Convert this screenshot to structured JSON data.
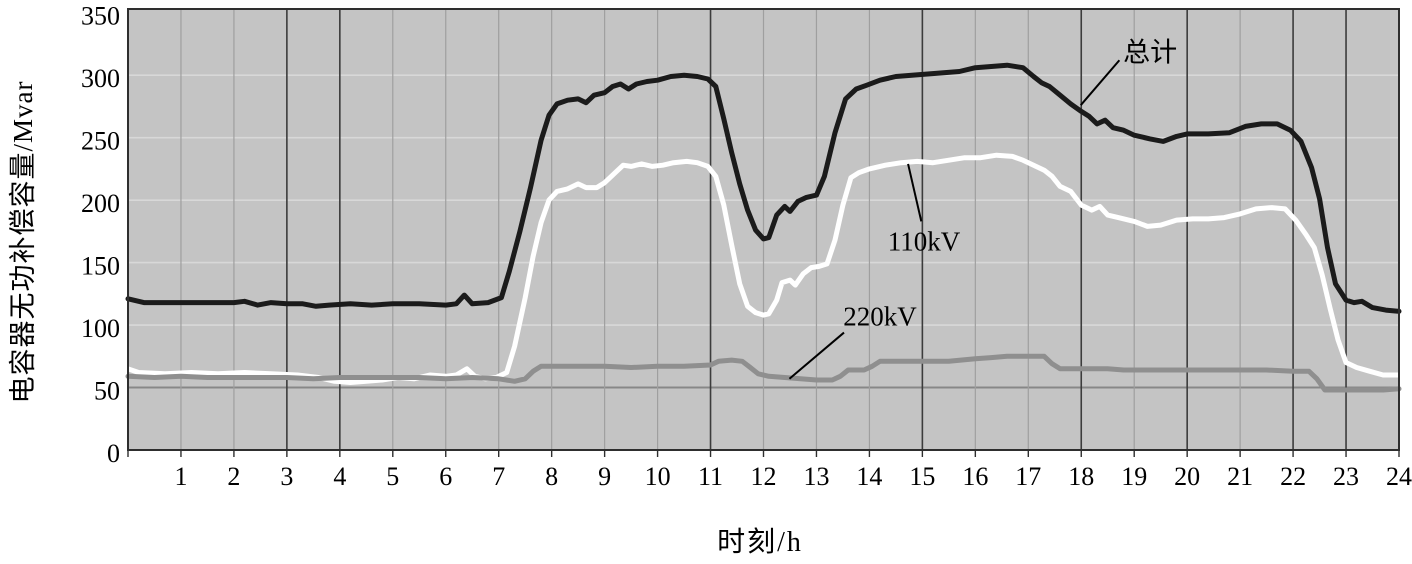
{
  "chart_data": {
    "type": "line",
    "title": "",
    "xlabel": "时刻/h",
    "ylabel": "电容器无功补偿容量/Mvar",
    "xlim": [
      0,
      24
    ],
    "ylim": [
      0,
      350
    ],
    "x_ticks": [
      0,
      1,
      2,
      3,
      4,
      5,
      6,
      7,
      8,
      9,
      10,
      11,
      12,
      13,
      14,
      15,
      16,
      17,
      18,
      19,
      20,
      21,
      22,
      23,
      24
    ],
    "y_ticks": [
      0,
      50,
      100,
      150,
      200,
      250,
      300,
      350
    ],
    "grid": {
      "vertical_hours": [
        1,
        2,
        3,
        4,
        5,
        6,
        7,
        8,
        9,
        10,
        11,
        12,
        13,
        14,
        15,
        16,
        17,
        18,
        19,
        20,
        21,
        22,
        23
      ],
      "dark_vertical_hours": [
        3,
        4,
        11,
        15,
        18,
        20,
        22,
        23
      ],
      "horizontal_values": [
        50,
        100,
        150,
        200,
        250,
        300
      ],
      "dark_horizontal_values": [
        50
      ]
    },
    "colors": {
      "plot_bg": "#c4c4c4",
      "grid_light_h": "#d8d8d8",
      "grid_dark_h": "#878787",
      "grid_light_v": "#9f9f9f",
      "grid_dark_v": "#3c3c3c",
      "frame": "#2e2e2e",
      "annotation": "#000000"
    },
    "series": [
      {
        "key": "total",
        "name": "总计",
        "color": "#1b1b1b",
        "width": 5,
        "points": [
          [
            0,
            121
          ],
          [
            0.3,
            118
          ],
          [
            1,
            118
          ],
          [
            1.5,
            118
          ],
          [
            2,
            118
          ],
          [
            2.2,
            119
          ],
          [
            2.45,
            116
          ],
          [
            2.7,
            118
          ],
          [
            3,
            117
          ],
          [
            3.3,
            117
          ],
          [
            3.55,
            115
          ],
          [
            3.8,
            116
          ],
          [
            4.2,
            117
          ],
          [
            4.6,
            116
          ],
          [
            5,
            117
          ],
          [
            5.5,
            117
          ],
          [
            6,
            116
          ],
          [
            6.2,
            117
          ],
          [
            6.35,
            124
          ],
          [
            6.5,
            117
          ],
          [
            6.8,
            118
          ],
          [
            7.05,
            122
          ],
          [
            7.2,
            143
          ],
          [
            7.4,
            175
          ],
          [
            7.6,
            210
          ],
          [
            7.8,
            248
          ],
          [
            7.95,
            268
          ],
          [
            8.1,
            277
          ],
          [
            8.3,
            280
          ],
          [
            8.5,
            281
          ],
          [
            8.65,
            278
          ],
          [
            8.8,
            284
          ],
          [
            9,
            286
          ],
          [
            9.15,
            291
          ],
          [
            9.3,
            293
          ],
          [
            9.45,
            289
          ],
          [
            9.6,
            293
          ],
          [
            9.8,
            295
          ],
          [
            10,
            296
          ],
          [
            10.25,
            299
          ],
          [
            10.5,
            300
          ],
          [
            10.75,
            299
          ],
          [
            10.95,
            297
          ],
          [
            11.1,
            291
          ],
          [
            11.25,
            265
          ],
          [
            11.4,
            238
          ],
          [
            11.55,
            213
          ],
          [
            11.7,
            192
          ],
          [
            11.85,
            176
          ],
          [
            12,
            169
          ],
          [
            12.1,
            170
          ],
          [
            12.25,
            188
          ],
          [
            12.4,
            195
          ],
          [
            12.5,
            191
          ],
          [
            12.65,
            199
          ],
          [
            12.8,
            202
          ],
          [
            13,
            204
          ],
          [
            13.15,
            219
          ],
          [
            13.35,
            254
          ],
          [
            13.55,
            281
          ],
          [
            13.75,
            289
          ],
          [
            13.95,
            292
          ],
          [
            14.2,
            296
          ],
          [
            14.5,
            299
          ],
          [
            14.8,
            300
          ],
          [
            15.1,
            301
          ],
          [
            15.4,
            302
          ],
          [
            15.7,
            303
          ],
          [
            16,
            306
          ],
          [
            16.3,
            307
          ],
          [
            16.6,
            308
          ],
          [
            16.9,
            306
          ],
          [
            17.1,
            299
          ],
          [
            17.25,
            294
          ],
          [
            17.4,
            291
          ],
          [
            17.6,
            284
          ],
          [
            17.8,
            277
          ],
          [
            18,
            271
          ],
          [
            18.15,
            267
          ],
          [
            18.3,
            261
          ],
          [
            18.45,
            264
          ],
          [
            18.6,
            258
          ],
          [
            18.8,
            256
          ],
          [
            19,
            252
          ],
          [
            19.3,
            249
          ],
          [
            19.55,
            247
          ],
          [
            19.8,
            251
          ],
          [
            20,
            253
          ],
          [
            20.4,
            253
          ],
          [
            20.8,
            254
          ],
          [
            21.1,
            259
          ],
          [
            21.4,
            261
          ],
          [
            21.7,
            261
          ],
          [
            21.95,
            256
          ],
          [
            22.15,
            247
          ],
          [
            22.35,
            226
          ],
          [
            22.5,
            201
          ],
          [
            22.65,
            162
          ],
          [
            22.8,
            133
          ],
          [
            23,
            120
          ],
          [
            23.15,
            118
          ],
          [
            23.3,
            119
          ],
          [
            23.5,
            114
          ],
          [
            23.75,
            112
          ],
          [
            24,
            111
          ]
        ]
      },
      {
        "key": "kv110",
        "name": "110kV",
        "color": "#ffffff",
        "width": 5,
        "points": [
          [
            0,
            65
          ],
          [
            0.2,
            62
          ],
          [
            0.7,
            61
          ],
          [
            1.2,
            62
          ],
          [
            1.7,
            61
          ],
          [
            2.2,
            62
          ],
          [
            2.7,
            61
          ],
          [
            3.2,
            60
          ],
          [
            3.6,
            58
          ],
          [
            3.9,
            55
          ],
          [
            4.2,
            54
          ],
          [
            4.5,
            55
          ],
          [
            4.8,
            56
          ],
          [
            5.1,
            58
          ],
          [
            5.4,
            57
          ],
          [
            5.7,
            60
          ],
          [
            6,
            59
          ],
          [
            6.2,
            60
          ],
          [
            6.4,
            65
          ],
          [
            6.55,
            59
          ],
          [
            6.75,
            57
          ],
          [
            6.95,
            58
          ],
          [
            7.15,
            62
          ],
          [
            7.3,
            83
          ],
          [
            7.5,
            122
          ],
          [
            7.65,
            155
          ],
          [
            7.8,
            182
          ],
          [
            7.95,
            200
          ],
          [
            8.1,
            207
          ],
          [
            8.3,
            209
          ],
          [
            8.5,
            213
          ],
          [
            8.65,
            210
          ],
          [
            8.85,
            210
          ],
          [
            9,
            214
          ],
          [
            9.2,
            222
          ],
          [
            9.35,
            228
          ],
          [
            9.5,
            227
          ],
          [
            9.7,
            229
          ],
          [
            9.9,
            227
          ],
          [
            10.1,
            228
          ],
          [
            10.3,
            230
          ],
          [
            10.55,
            231
          ],
          [
            10.75,
            230
          ],
          [
            10.95,
            227
          ],
          [
            11.1,
            219
          ],
          [
            11.25,
            196
          ],
          [
            11.4,
            164
          ],
          [
            11.55,
            133
          ],
          [
            11.7,
            115
          ],
          [
            11.85,
            110
          ],
          [
            12,
            108
          ],
          [
            12.1,
            109
          ],
          [
            12.25,
            120
          ],
          [
            12.35,
            134
          ],
          [
            12.5,
            136
          ],
          [
            12.6,
            132
          ],
          [
            12.75,
            141
          ],
          [
            12.9,
            146
          ],
          [
            13.05,
            147
          ],
          [
            13.2,
            149
          ],
          [
            13.35,
            168
          ],
          [
            13.5,
            196
          ],
          [
            13.65,
            218
          ],
          [
            13.8,
            222
          ],
          [
            14,
            225
          ],
          [
            14.3,
            228
          ],
          [
            14.6,
            230
          ],
          [
            14.9,
            231
          ],
          [
            15.2,
            230
          ],
          [
            15.5,
            232
          ],
          [
            15.8,
            234
          ],
          [
            16.1,
            234
          ],
          [
            16.4,
            236
          ],
          [
            16.7,
            235
          ],
          [
            16.9,
            232
          ],
          [
            17.1,
            228
          ],
          [
            17.3,
            224
          ],
          [
            17.45,
            219
          ],
          [
            17.6,
            211
          ],
          [
            17.8,
            207
          ],
          [
            18,
            196
          ],
          [
            18.2,
            192
          ],
          [
            18.35,
            195
          ],
          [
            18.5,
            188
          ],
          [
            18.7,
            186
          ],
          [
            19,
            183
          ],
          [
            19.25,
            179
          ],
          [
            19.5,
            180
          ],
          [
            19.8,
            184
          ],
          [
            20.1,
            185
          ],
          [
            20.4,
            185
          ],
          [
            20.7,
            186
          ],
          [
            21,
            189
          ],
          [
            21.3,
            193
          ],
          [
            21.6,
            194
          ],
          [
            21.85,
            193
          ],
          [
            22.05,
            184
          ],
          [
            22.25,
            172
          ],
          [
            22.4,
            162
          ],
          [
            22.55,
            140
          ],
          [
            22.7,
            113
          ],
          [
            22.85,
            88
          ],
          [
            23,
            70
          ],
          [
            23.2,
            66
          ],
          [
            23.45,
            63
          ],
          [
            23.7,
            60
          ],
          [
            24,
            60
          ]
        ]
      },
      {
        "key": "kv220",
        "name": "220kV",
        "color": "#8f8f8f",
        "width": 5,
        "points": [
          [
            0,
            59
          ],
          [
            0.5,
            58
          ],
          [
            1,
            59
          ],
          [
            1.5,
            58
          ],
          [
            2,
            58
          ],
          [
            2.5,
            58
          ],
          [
            3,
            58
          ],
          [
            3.5,
            57
          ],
          [
            4,
            58
          ],
          [
            4.5,
            58
          ],
          [
            5,
            58
          ],
          [
            5.5,
            58
          ],
          [
            6,
            57
          ],
          [
            6.5,
            58
          ],
          [
            7,
            57
          ],
          [
            7.3,
            55
          ],
          [
            7.5,
            57
          ],
          [
            7.65,
            63
          ],
          [
            7.8,
            67
          ],
          [
            8,
            67
          ],
          [
            8.5,
            67
          ],
          [
            9,
            67
          ],
          [
            9.5,
            66
          ],
          [
            10,
            67
          ],
          [
            10.5,
            67
          ],
          [
            11,
            68
          ],
          [
            11.15,
            71
          ],
          [
            11.4,
            72
          ],
          [
            11.6,
            71
          ],
          [
            11.75,
            66
          ],
          [
            11.9,
            61
          ],
          [
            12.1,
            59
          ],
          [
            12.4,
            58
          ],
          [
            12.7,
            57
          ],
          [
            13,
            56
          ],
          [
            13.3,
            56
          ],
          [
            13.45,
            59
          ],
          [
            13.6,
            64
          ],
          [
            13.9,
            64
          ],
          [
            14.05,
            67
          ],
          [
            14.2,
            71
          ],
          [
            14.5,
            71
          ],
          [
            15,
            71
          ],
          [
            15.5,
            71
          ],
          [
            16,
            73
          ],
          [
            16.3,
            74
          ],
          [
            16.6,
            75
          ],
          [
            17,
            75
          ],
          [
            17.3,
            75
          ],
          [
            17.45,
            69
          ],
          [
            17.6,
            65
          ],
          [
            18,
            65
          ],
          [
            18.5,
            65
          ],
          [
            18.8,
            64
          ],
          [
            19.2,
            64
          ],
          [
            19.6,
            64
          ],
          [
            20,
            64
          ],
          [
            20.5,
            64
          ],
          [
            21,
            64
          ],
          [
            21.5,
            64
          ],
          [
            22,
            63
          ],
          [
            22.3,
            63
          ],
          [
            22.45,
            57
          ],
          [
            22.6,
            48
          ],
          [
            22.9,
            48
          ],
          [
            23.3,
            48
          ],
          [
            23.7,
            48
          ],
          [
            24,
            49
          ]
        ]
      }
    ],
    "annotations": [
      {
        "key": "total",
        "text": "总计",
        "label_h": 19.3,
        "label_v": 318,
        "line": [
          [
            18.72,
            312
          ],
          [
            17.99,
            276
          ]
        ]
      },
      {
        "key": "kv110",
        "text": "110kV",
        "label_h": 15.03,
        "label_v": 167,
        "line": [
          [
            14.98,
            183
          ],
          [
            14.73,
            229
          ]
        ]
      },
      {
        "key": "kv220",
        "text": "220kV",
        "label_h": 14.2,
        "label_v": 107,
        "line": [
          [
            13.52,
            94
          ],
          [
            12.49,
            57
          ]
        ]
      }
    ]
  }
}
